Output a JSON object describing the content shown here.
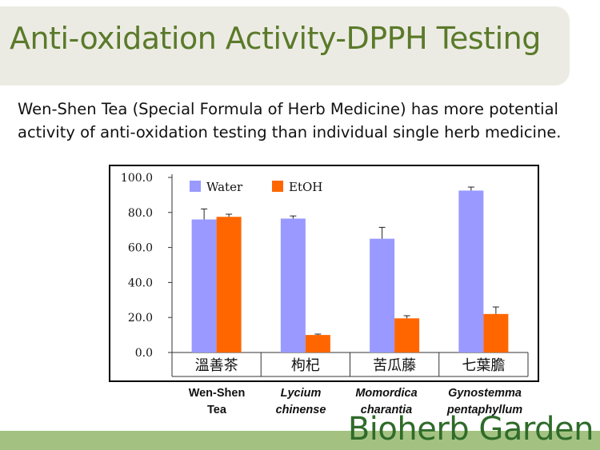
{
  "slide": {
    "title": "Anti-oxidation Activity-DPPH Testing",
    "subtitle": "Wen-Shen Tea (Special Formula of Herb Medicine) has more potential activity of anti-oxidation testing than individual single herb medicine.",
    "brand": "Bioherb Garden"
  },
  "species_labels": [
    {
      "line1": "Wen-Shen",
      "line2": "Tea"
    },
    {
      "line1": "Lycium",
      "line2": "chinense"
    },
    {
      "line1": "Momordica",
      "line2": "charantia"
    },
    {
      "line1": "Gynostemma",
      "line2": "pentaphyllum"
    }
  ],
  "chart_data": {
    "type": "bar",
    "categories": [
      "溫善茶",
      "枸杞",
      "苦瓜藤",
      "七葉膽"
    ],
    "series": [
      {
        "name": "Water",
        "color": "#9999ff",
        "values": [
          76.0,
          76.5,
          65.0,
          92.5
        ],
        "errors": [
          6.0,
          1.5,
          6.5,
          2.0
        ]
      },
      {
        "name": "EtOH",
        "color": "#ff6600",
        "values": [
          77.5,
          10.0,
          19.5,
          22.0
        ],
        "errors": [
          1.5,
          0.5,
          1.5,
          4.0
        ]
      }
    ],
    "yticks": [
      "0.0",
      "20.0",
      "40.0",
      "60.0",
      "80.0",
      "100.0"
    ],
    "ylim": [
      0,
      100
    ],
    "legend_position": "top-left",
    "grid": false
  }
}
